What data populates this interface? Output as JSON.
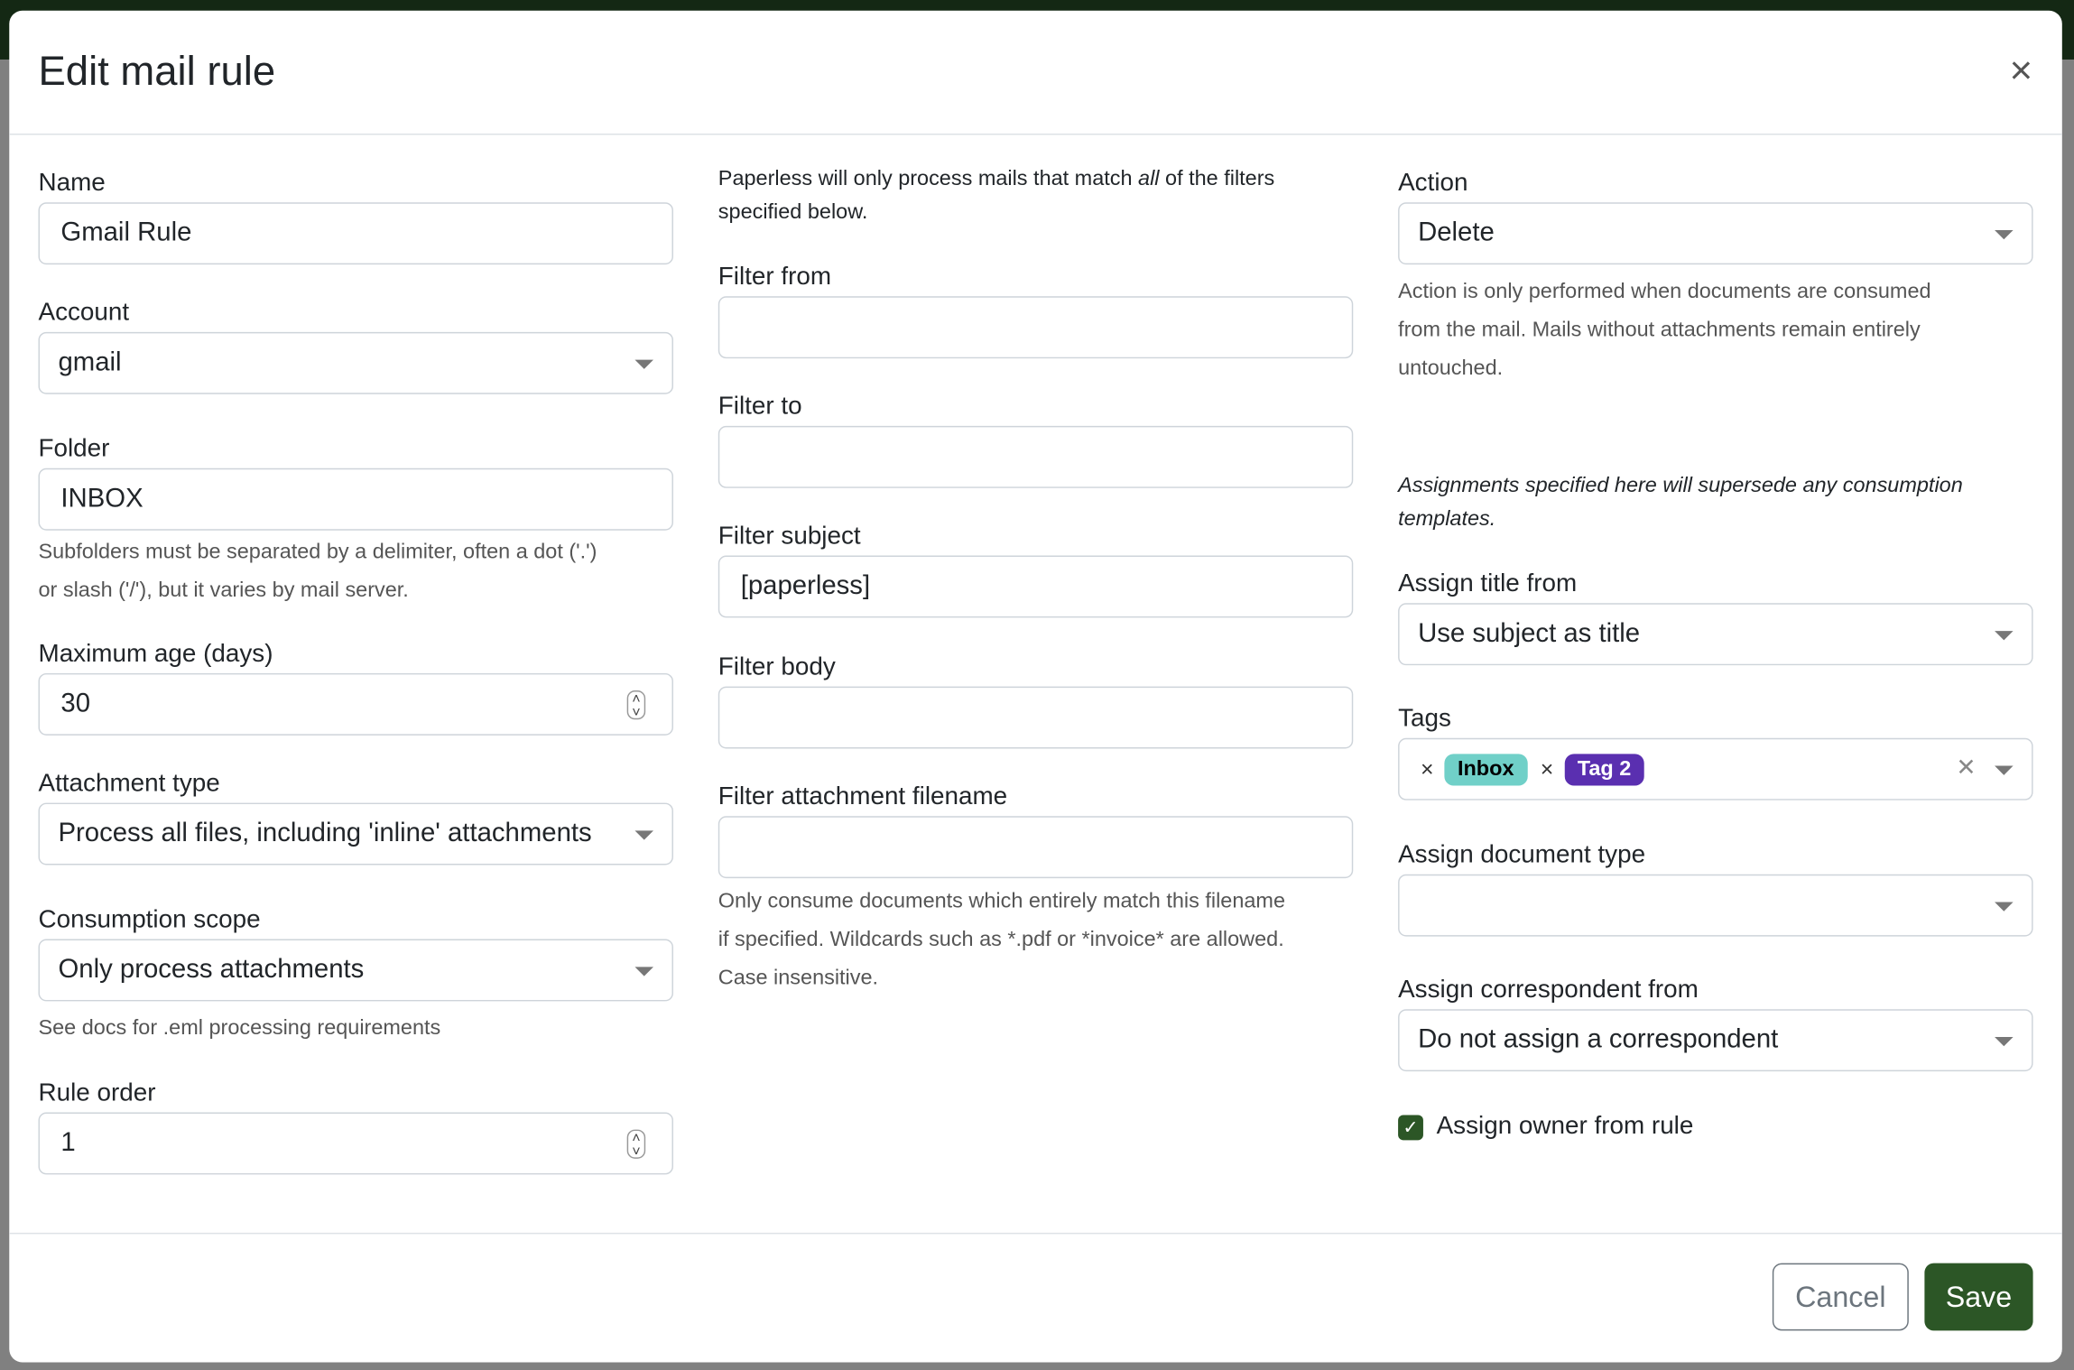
{
  "modal": {
    "title": "Edit mail rule",
    "close_label": "×"
  },
  "col1": {
    "name": {
      "label": "Name",
      "value": "Gmail Rule"
    },
    "account": {
      "label": "Account",
      "value": "gmail"
    },
    "folder": {
      "label": "Folder",
      "value": "INBOX",
      "help1": "Subfolders must be separated by a delimiter, often a dot ('.')",
      "help2": "or slash ('/'), but it varies by mail server."
    },
    "max_age": {
      "label": "Maximum age (days)",
      "value": "30"
    },
    "attachment_type": {
      "label": "Attachment type",
      "value": "Process all files, including 'inline' attachments"
    },
    "consumption_scope": {
      "label": "Consumption scope",
      "value": "Only process attachments",
      "help": "See docs for .eml processing requirements"
    },
    "rule_order": {
      "label": "Rule order",
      "value": "1"
    }
  },
  "col2": {
    "intro_pre": "Paperless will only process mails that match ",
    "intro_em": "all",
    "intro_post": " of the filters",
    "intro_line2": "specified below.",
    "filter_from": {
      "label": "Filter from",
      "value": ""
    },
    "filter_to": {
      "label": "Filter to",
      "value": ""
    },
    "filter_subject": {
      "label": "Filter subject",
      "value": "[paperless]"
    },
    "filter_body": {
      "label": "Filter body",
      "value": ""
    },
    "filter_attachment": {
      "label": "Filter attachment filename",
      "value": "",
      "help1": "Only consume documents which entirely match this filename",
      "help2": "if specified. Wildcards such as *.pdf or *invoice* are allowed.",
      "help3": "Case insensitive."
    }
  },
  "col3": {
    "action": {
      "label": "Action",
      "value": "Delete",
      "help1": "Action is only performed when documents are consumed",
      "help2": "from the mail. Mails without attachments remain entirely",
      "help3": "untouched."
    },
    "assign_note1": "Assignments specified here will supersede any consumption",
    "assign_note2": "templates.",
    "assign_title": {
      "label": "Assign title from",
      "value": "Use subject as title"
    },
    "tags": {
      "label": "Tags",
      "items": [
        {
          "name": "Inbox",
          "color": "#70d0c8",
          "text_color": "#000000"
        },
        {
          "name": "Tag 2",
          "color": "#5a2fb0",
          "text_color": "#ffffff"
        }
      ],
      "remove_icon": "×",
      "clear_icon": "✕"
    },
    "doc_type": {
      "label": "Assign document type",
      "value": ""
    },
    "correspondent": {
      "label": "Assign correspondent from",
      "value": "Do not assign a correspondent"
    },
    "owner": {
      "label": "Assign owner from rule",
      "checked": true
    }
  },
  "footer": {
    "cancel": "Cancel",
    "save": "Save"
  },
  "colors": {
    "accent": "#2c5626",
    "backdrop": "#808080",
    "topbar": "#142814"
  }
}
